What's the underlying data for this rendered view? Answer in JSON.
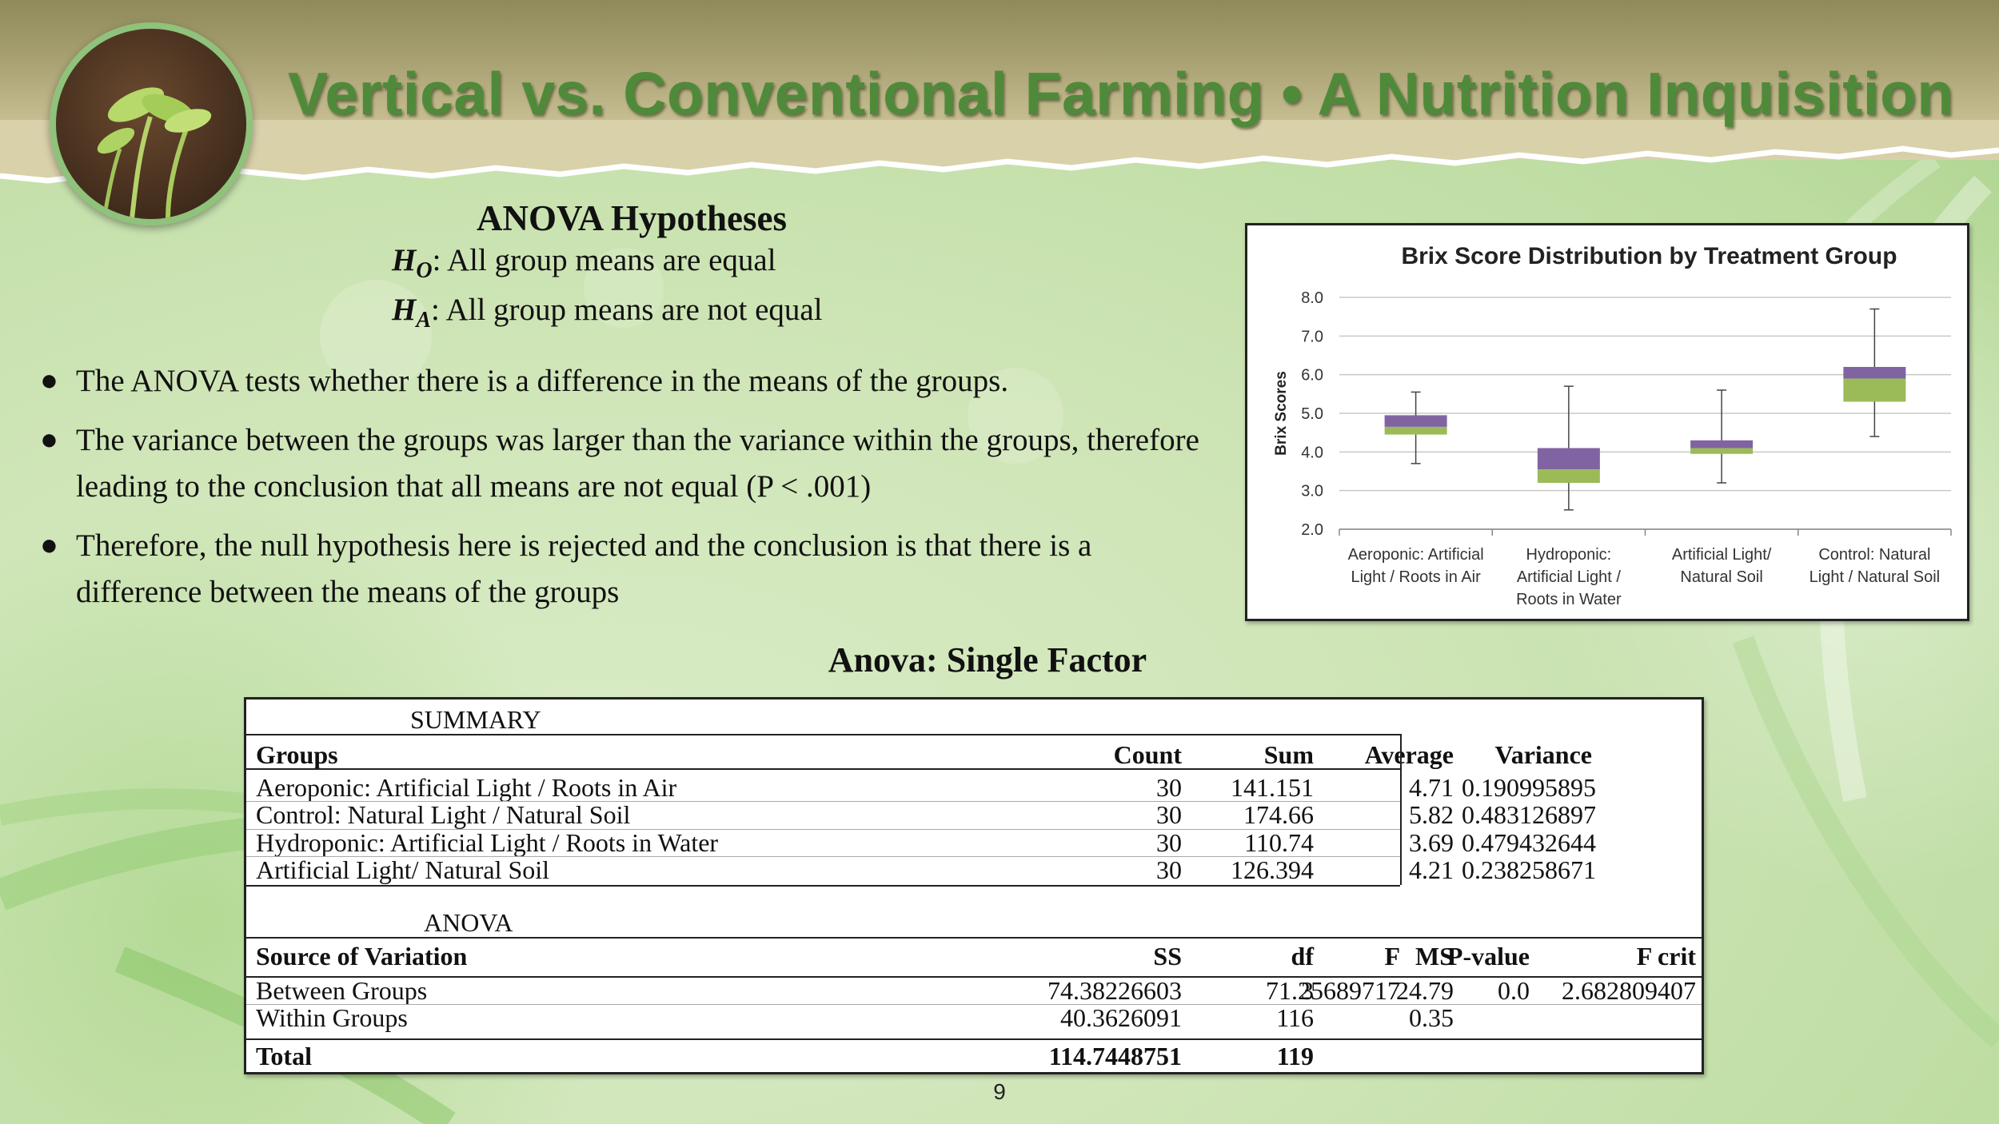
{
  "title": "Vertical vs. Conventional Farming • A Nutrition Inquisition",
  "hypotheses": {
    "heading": "ANOVA Hypotheses",
    "h0_symbol": "H",
    "h0_sub": "O",
    "h0_text": ": All group means are equal",
    "ha_symbol": "H",
    "ha_sub": "A",
    "ha_text": ": All group means are not equal"
  },
  "bullets": [
    "The ANOVA tests whether there is a difference in the means of the groups.",
    "The variance between the groups was larger than the variance within the groups, therefore leading to the conclusion that all means are not equal (P < .001)",
    "Therefore, the null hypothesis here is rejected and the conclusion is that there is a difference between the means of the groups"
  ],
  "chart_data": {
    "type": "boxplot",
    "title": "Brix Score Distribution by Treatment Group",
    "ylabel": "Brix Scores",
    "xlabel": "",
    "ylim": [
      2.0,
      8.0
    ],
    "yticks": [
      "2.0",
      "3.0",
      "4.0",
      "5.0",
      "6.0",
      "7.0",
      "8.0"
    ],
    "grid": true,
    "colors": {
      "upper_box": "#8064a2",
      "lower_box": "#9bbb59"
    },
    "categories": [
      [
        "Aeroponic: Artificial",
        "Light / Roots in Air"
      ],
      [
        "Hydroponic:",
        "Artificial Light /",
        "Roots in Water"
      ],
      [
        "Artificial Light/",
        "Natural Soil"
      ],
      [
        "Control: Natural",
        "Light / Natural Soil"
      ]
    ],
    "boxes": [
      {
        "min": 3.7,
        "q1": 4.45,
        "median": 4.65,
        "q3": 4.95,
        "max": 5.55
      },
      {
        "min": 2.5,
        "q1": 3.2,
        "median": 3.55,
        "q3": 4.1,
        "max": 5.7
      },
      {
        "min": 3.2,
        "q1": 3.95,
        "median": 4.1,
        "q3": 4.3,
        "max": 5.6
      },
      {
        "min": 4.4,
        "q1": 5.3,
        "median": 5.9,
        "q3": 6.2,
        "max": 7.7
      }
    ]
  },
  "anova_title": "Anova: Single Factor",
  "summary": {
    "label": "SUMMARY",
    "headers": [
      "Groups",
      "Count",
      "Sum",
      "Average",
      "Variance"
    ],
    "rows": [
      [
        "Aeroponic: Artificial Light / Roots in Air",
        "30",
        "141.151",
        "4.71",
        "0.190995895"
      ],
      [
        "Control: Natural Light / Natural Soil",
        "30",
        "174.66",
        "5.82",
        "0.483126897"
      ],
      [
        "Hydroponic: Artificial Light / Roots in Water",
        "30",
        "110.74",
        "3.69",
        "0.479432644"
      ],
      [
        "Artificial Light/ Natural Soil",
        "30",
        "126.394",
        "4.21",
        "0.238258671"
      ]
    ]
  },
  "anova": {
    "label": "ANOVA",
    "headers": [
      "Source of Variation",
      "SS",
      "df",
      "MS",
      "F",
      "P-value",
      "F crit"
    ],
    "rows": [
      [
        "Between Groups",
        "74.38226603",
        "3",
        "24.79",
        "71.25689717",
        "0.0",
        "2.682809407"
      ],
      [
        "Within Groups",
        "40.3626091",
        "116",
        "0.35",
        "",
        "",
        ""
      ]
    ],
    "total": [
      "Total",
      "114.7448751",
      "119"
    ]
  },
  "page_number": "9"
}
